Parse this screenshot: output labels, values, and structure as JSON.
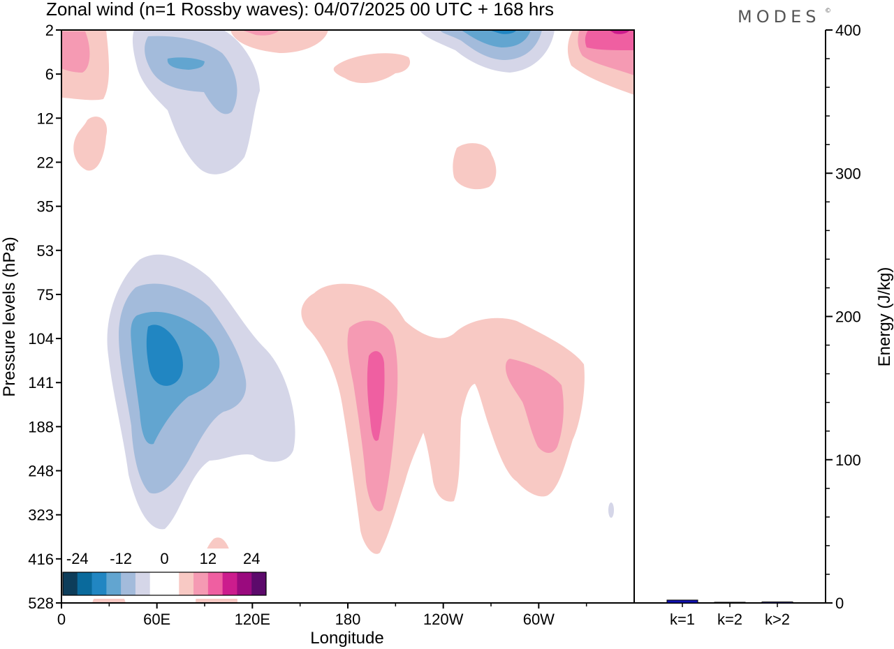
{
  "title": "Zonal wind (n=1 Rossby waves):  04/07/2025  00 UTC  + 168 hrs",
  "logo": "MODES",
  "logo_mark": "©",
  "chart_data": [
    {
      "type": "heatmap",
      "subtype": "filled contour",
      "xlabel": "Longitude",
      "ylabel": "Pressure levels (hPa)",
      "x_ticks": [
        "0",
        "60E",
        "120E",
        "180",
        "120W",
        "60W"
      ],
      "y_ticks": [
        "2",
        "6",
        "12",
        "22",
        "35",
        "53",
        "75",
        "104",
        "141",
        "188",
        "248",
        "323",
        "416",
        "528"
      ],
      "colorbar": {
        "labels": [
          "-24",
          "-12",
          "0",
          "12",
          "24"
        ],
        "colors": [
          "#0d3d5a",
          "#0a6a9c",
          "#2186c2",
          "#62a5d0",
          "#a3bbdb",
          "#d5d6e8",
          "#ffffff",
          "#ffffff",
          "#f8c9c4",
          "#f59ab3",
          "#ef5fa1",
          "#cc1c8d",
          "#9a0a7e",
          "#5c0a6b"
        ]
      },
      "features": [
        {
          "sign": "negative",
          "min_value": -18,
          "region": "30E-120E, 53-323 hPa"
        },
        {
          "sign": "positive",
          "min_value": 12,
          "region": "150E-60W, 75-416 hPa"
        },
        {
          "sign": "negative",
          "min_value": -12,
          "region": "40E-100E, 2-22 hPa"
        },
        {
          "sign": "positive",
          "min_value": 18,
          "region": "near 30W, 2-6 hPa"
        }
      ]
    },
    {
      "type": "bar",
      "categories": [
        "k=1",
        "k=2",
        "k>2"
      ],
      "values": [
        2,
        0.3,
        0.7
      ],
      "ylabel": "Energy (J/kg)",
      "ylim": [
        0,
        400
      ],
      "y_ticks": [
        "0",
        "100",
        "200",
        "300",
        "400"
      ],
      "colors": [
        "#1010b0",
        "#1010b0",
        "#1010b0"
      ]
    }
  ]
}
